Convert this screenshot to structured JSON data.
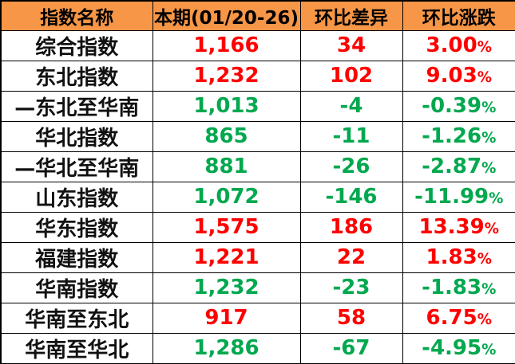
{
  "colors": {
    "header_bg": "#F79646",
    "up_red": "#FE0000",
    "down_green": "#00A84E",
    "border": "#000000",
    "label_text": "#111111",
    "row_bg": "#FFFFFF"
  },
  "chart_data": {
    "type": "table",
    "columns": [
      "指数名称",
      "本期(01/20-26)",
      "环比差异",
      "环比涨跌"
    ],
    "rows": [
      {
        "name": "综合指数",
        "current": "1,166",
        "diff": "34",
        "pct": "3.00%",
        "trend": "up"
      },
      {
        "name": "东北指数",
        "current": "1,232",
        "diff": "102",
        "pct": "9.03%",
        "trend": "up"
      },
      {
        "name": "—东北至华南",
        "current": "1,013",
        "diff": "-4",
        "pct": "-0.39%",
        "trend": "down"
      },
      {
        "name": "华北指数",
        "current": "865",
        "diff": "-11",
        "pct": "-1.26%",
        "trend": "down"
      },
      {
        "name": "—华北至华南",
        "current": "881",
        "diff": "-26",
        "pct": "-2.87%",
        "trend": "down"
      },
      {
        "name": "山东指数",
        "current": "1,072",
        "diff": "-146",
        "pct": "-11.99%",
        "trend": "down"
      },
      {
        "name": "华东指数",
        "current": "1,575",
        "diff": "186",
        "pct": "13.39%",
        "trend": "up"
      },
      {
        "name": "福建指数",
        "current": "1,221",
        "diff": "22",
        "pct": "1.83%",
        "trend": "up"
      },
      {
        "name": "华南指数",
        "current": "1,232",
        "diff": "-23",
        "pct": "-1.83%",
        "trend": "down"
      },
      {
        "name": "华南至东北",
        "current": "917",
        "diff": "58",
        "pct": "6.75%",
        "trend": "up"
      },
      {
        "name": "华南至华北",
        "current": "1,286",
        "diff": "-67",
        "pct": "-4.95%",
        "trend": "down"
      }
    ]
  }
}
